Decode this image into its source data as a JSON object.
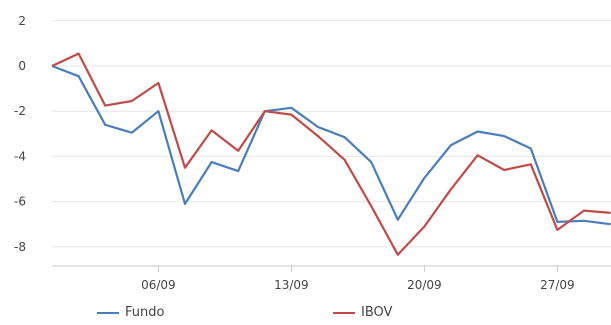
{
  "chart_data": {
    "type": "line",
    "title": "",
    "xlabel": "",
    "ylabel": "",
    "ylim": [
      -9,
      2
    ],
    "yticks": [
      2,
      0,
      -2,
      -4,
      -6,
      -8
    ],
    "xtick_labels": [
      "06/09",
      "13/09",
      "20/09",
      "27/09"
    ],
    "grid": true,
    "legend_position": "bottom",
    "series": [
      {
        "name": "Fundo",
        "color": "#4a7ebb",
        "values": [
          0,
          -0.45,
          -2.6,
          -2.95,
          -2.0,
          -6.1,
          -4.25,
          -4.65,
          -2.0,
          -1.85,
          -2.7,
          -3.15,
          -4.25,
          -6.8,
          -4.95,
          -3.5,
          -2.9,
          -3.1,
          -3.65,
          -6.9,
          -6.85,
          -7.0
        ]
      },
      {
        "name": "IBOV",
        "color": "#be4b48",
        "values": [
          0,
          0.55,
          -1.75,
          -1.55,
          -0.75,
          -4.5,
          -2.85,
          -3.75,
          -2.0,
          -2.15,
          -3.1,
          -4.15,
          -6.2,
          -8.35,
          -7.1,
          -5.45,
          -3.95,
          -4.6,
          -4.35,
          -7.25,
          -6.4,
          -6.5
        ]
      }
    ]
  }
}
